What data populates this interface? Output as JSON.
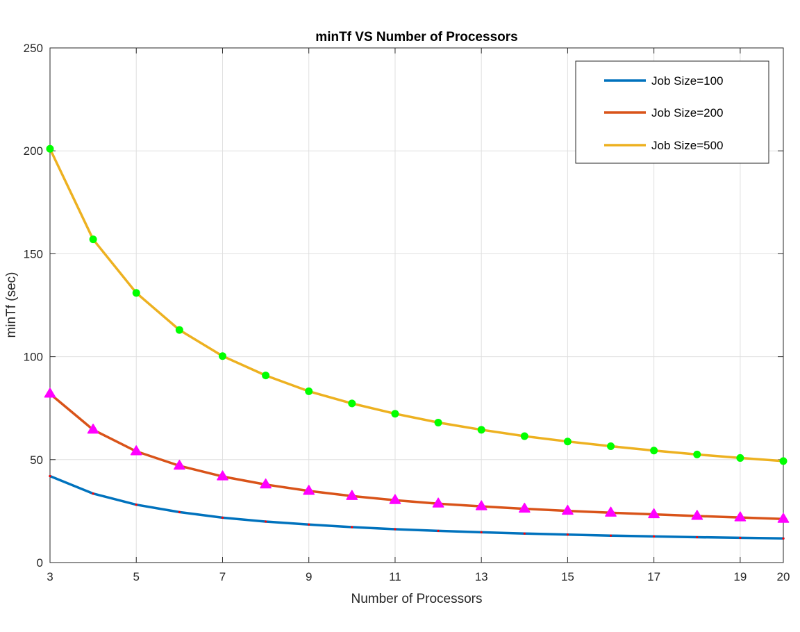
{
  "chart_data": {
    "type": "line",
    "title": "minTf VS Number of Processors",
    "xlabel": "Number of Processors",
    "ylabel": "minTf (sec)",
    "xlim": [
      3,
      20
    ],
    "ylim": [
      0,
      250
    ],
    "xticks": [
      3,
      5,
      7,
      9,
      11,
      13,
      15,
      17,
      19,
      20
    ],
    "yticks": [
      0,
      50,
      100,
      150,
      200,
      250
    ],
    "grid": true,
    "legend_position": "top-right",
    "x": [
      3,
      4,
      5,
      6,
      7,
      8,
      9,
      10,
      11,
      12,
      13,
      14,
      15,
      16,
      17,
      18,
      19,
      20
    ],
    "series": [
      {
        "name": "Job Size=100",
        "color": "#0072BD",
        "marker": "dot",
        "marker_color": "#FF0000",
        "values": [
          42,
          33.5,
          28.1,
          24.5,
          21.8,
          19.9,
          18.5,
          17.2,
          16.2,
          15.4,
          14.7,
          14.1,
          13.6,
          13.1,
          12.7,
          12.3,
          12,
          11.7
        ]
      },
      {
        "name": "Job Size=200",
        "color": "#D95319",
        "marker": "triangle",
        "marker_color": "#FF00FF",
        "values": [
          82,
          64.5,
          54,
          47,
          41.8,
          37.9,
          34.8,
          32.3,
          30.3,
          28.6,
          27.3,
          26.1,
          25.1,
          24.2,
          23.4,
          22.6,
          21.9,
          21.2
        ]
      },
      {
        "name": "Job Size=500",
        "color": "#EDB120",
        "marker": "circle",
        "marker_color": "#00FF00",
        "values": [
          201,
          157,
          131,
          113,
          100.3,
          90.9,
          83.2,
          77.3,
          72.3,
          68,
          64.5,
          61.4,
          58.8,
          56.5,
          54.4,
          52.5,
          50.8,
          49.3
        ]
      }
    ]
  }
}
